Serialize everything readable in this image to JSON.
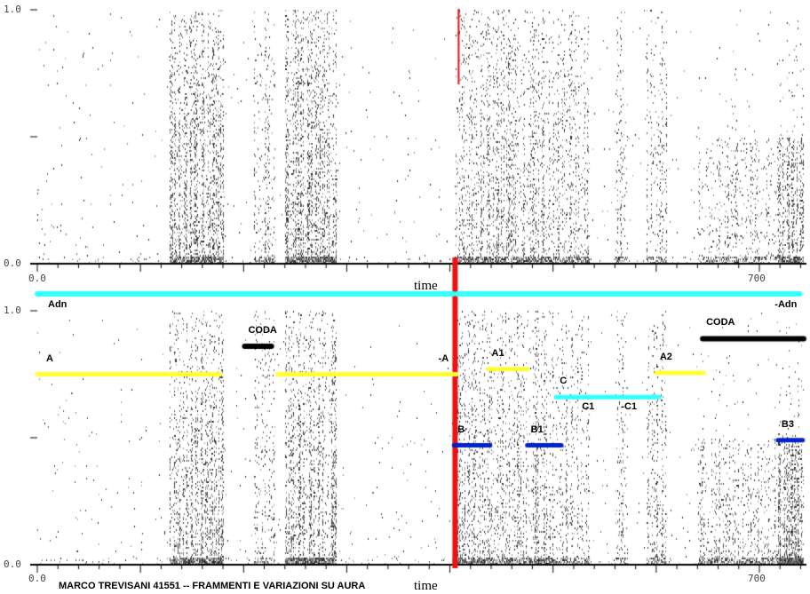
{
  "chart_data": {
    "type": "heatmap",
    "description_kind": "spectrogram",
    "xlabel": "time",
    "xlim": [
      0,
      743
    ],
    "ylim": [
      0.0,
      1.0
    ],
    "x_tick_labels": [
      "0.0",
      "700"
    ],
    "y_tick_labels": [
      "0.0",
      "1.0"
    ],
    "credit": "MARCO TREVISANI 41551 -- FRAMMENTI E VARIAZIONI SU AURA",
    "marker_time": 405,
    "colors": {
      "yellow": "#ffff33",
      "cyan": "#33ffff",
      "blue": "#0022cc",
      "black": "#000000",
      "red": "#ee1111"
    },
    "sections": [
      {
        "label": "Adn",
        "start": 0,
        "end": 403,
        "color": "cyan"
      },
      {
        "label": "-Adn",
        "start": 407,
        "end": 739,
        "color": "cyan"
      }
    ],
    "annotations": [
      {
        "label": "A",
        "start": 0,
        "end": 177,
        "level": 0.75,
        "color": "yellow"
      },
      {
        "label": "CODA",
        "start": 201,
        "end": 227,
        "level": 0.86,
        "color": "black"
      },
      {
        "label": "-A",
        "start": 233,
        "end": 406,
        "level": 0.75,
        "color": "yellow"
      },
      {
        "label": "A1",
        "start": 437,
        "end": 475,
        "level": 0.77,
        "color": "yellow"
      },
      {
        "label": "A2",
        "start": 600,
        "end": 646,
        "level": 0.755,
        "color": "yellow"
      },
      {
        "label": "C",
        "start": 503,
        "end": 603,
        "level": 0.66,
        "color": "cyan"
      },
      {
        "label": "B",
        "start": 404,
        "end": 439,
        "level": 0.47,
        "color": "blue"
      },
      {
        "label": "B1",
        "start": 475,
        "end": 508,
        "level": 0.47,
        "color": "blue"
      },
      {
        "label": "B3",
        "start": 718,
        "end": 742,
        "level": 0.49,
        "color": "blue"
      },
      {
        "label": "CODA",
        "start": 645,
        "end": 743,
        "level": 0.89,
        "color": "black"
      }
    ],
    "text_labels": [
      {
        "label": "C1",
        "time": 528,
        "level": 0.63
      },
      {
        "label": "-C1",
        "time": 566,
        "level": 0.63
      }
    ]
  }
}
